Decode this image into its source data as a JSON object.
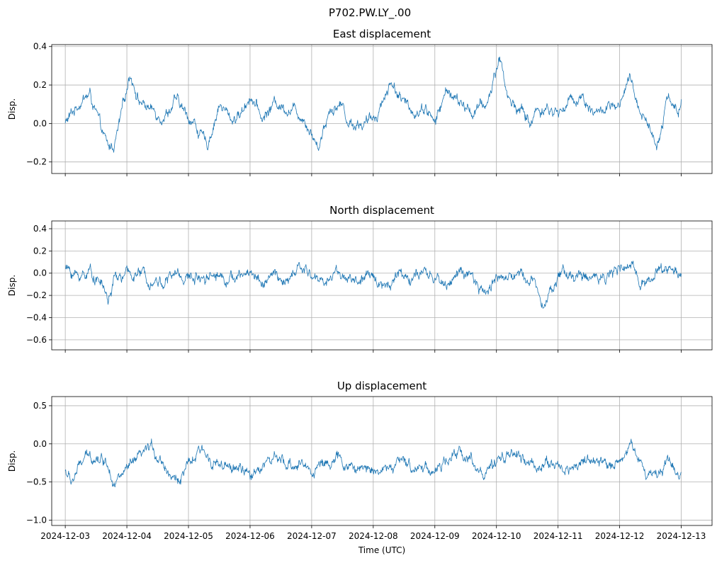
{
  "figure": {
    "title": "P702.PW.LY_.00"
  },
  "chart_data": [
    {
      "type": "line",
      "title": "East displacement",
      "xlabel": "",
      "ylabel": "Disp.",
      "ylim": [
        -0.26,
        0.41
      ],
      "yticks": [
        -0.2,
        0.0,
        0.2,
        0.4
      ],
      "ytick_labels": [
        "−0.2",
        "0.0",
        "0.2",
        "0.4"
      ],
      "xlim": [
        -0.22,
        10.5
      ],
      "x_start": "2024-12-03",
      "x_end": "2024-12-13",
      "grid": true,
      "color": "#1f77b4",
      "series": [
        {
          "x": [
            0,
            0.25,
            0.4,
            0.6,
            0.7,
            0.8,
            0.9,
            1.05,
            1.2,
            1.4,
            1.6,
            1.8,
            1.95,
            2.1,
            2.3,
            2.5,
            2.7,
            2.85,
            3.0,
            3.2,
            3.4,
            3.6,
            3.75,
            3.9,
            4.1,
            4.3,
            4.5,
            4.6,
            4.75,
            4.9,
            5.05,
            5.3,
            5.5,
            5.7,
            5.85,
            6.0,
            6.2,
            6.4,
            6.6,
            6.85,
            7.05,
            7.2,
            7.4,
            7.55,
            7.65,
            7.8,
            8.0,
            8.2,
            8.4,
            8.6,
            8.8,
            9.0,
            9.15,
            9.3,
            9.45,
            9.6,
            9.8,
            9.95,
            10.0
          ],
          "y": [
            0.0,
            0.12,
            0.15,
            -0.05,
            -0.13,
            -0.11,
            0.02,
            0.27,
            0.12,
            0.07,
            0.04,
            0.12,
            0.05,
            0.0,
            -0.12,
            0.1,
            0.02,
            0.05,
            0.15,
            0.02,
            0.11,
            0.08,
            0.07,
            0.02,
            -0.12,
            0.08,
            0.1,
            0.0,
            0.0,
            0.0,
            0.05,
            0.22,
            0.1,
            0.06,
            0.09,
            0.0,
            0.18,
            0.1,
            0.06,
            0.1,
            0.35,
            0.12,
            0.07,
            0.0,
            0.07,
            0.08,
            0.05,
            0.12,
            0.14,
            0.05,
            0.08,
            0.07,
            0.23,
            0.1,
            0.0,
            -0.1,
            0.15,
            0.05,
            0.1
          ]
        }
      ]
    },
    {
      "type": "line",
      "title": "North displacement",
      "xlabel": "",
      "ylabel": "Disp.",
      "ylim": [
        -0.69,
        0.47
      ],
      "yticks": [
        -0.6,
        -0.4,
        -0.2,
        0.0,
        0.2,
        0.4
      ],
      "ytick_labels": [
        "−0.6",
        "−0.4",
        "−0.2",
        "0.0",
        "0.2",
        "0.4"
      ],
      "xlim": [
        -0.22,
        10.5
      ],
      "x_start": "2024-12-03",
      "x_end": "2024-12-13",
      "grid": true,
      "color": "#1f77b4",
      "series": [
        {
          "x": [
            0,
            0.2,
            0.4,
            0.6,
            0.7,
            0.8,
            1.0,
            1.2,
            1.4,
            1.6,
            1.8,
            2.0,
            2.2,
            2.4,
            2.6,
            2.8,
            3.0,
            3.2,
            3.4,
            3.6,
            3.8,
            4.0,
            4.2,
            4.4,
            4.6,
            4.8,
            5.0,
            5.2,
            5.4,
            5.6,
            5.8,
            6.0,
            6.2,
            6.4,
            6.6,
            6.8,
            7.0,
            7.2,
            7.4,
            7.6,
            7.8,
            8.0,
            8.2,
            8.4,
            8.6,
            8.8,
            9.0,
            9.2,
            9.4,
            9.6,
            9.8,
            10.0
          ],
          "y": [
            0.05,
            -0.03,
            0.02,
            -0.1,
            -0.25,
            -0.05,
            -0.02,
            0.0,
            -0.05,
            -0.08,
            0.0,
            -0.05,
            -0.02,
            0.0,
            -0.03,
            -0.05,
            0.02,
            -0.08,
            -0.02,
            -0.1,
            0.05,
            -0.02,
            -0.08,
            0.02,
            -0.05,
            -0.08,
            -0.02,
            -0.12,
            0.0,
            -0.04,
            -0.02,
            -0.05,
            -0.1,
            0.02,
            -0.06,
            -0.2,
            -0.02,
            -0.05,
            0.0,
            -0.08,
            -0.25,
            -0.02,
            0.0,
            -0.05,
            -0.03,
            0.0,
            0.02,
            0.05,
            -0.08,
            0.0,
            0.05,
            0.0
          ]
        }
      ]
    },
    {
      "type": "line",
      "title": "Up displacement",
      "xlabel": "Time (UTC)",
      "ylabel": "Disp.",
      "ylim": [
        -1.07,
        0.62
      ],
      "yticks": [
        -1.0,
        -0.5,
        0.0,
        0.5
      ],
      "ytick_labels": [
        "−1.0",
        "−0.5",
        "0.0",
        "0.5"
      ],
      "xlim": [
        -0.22,
        10.5
      ],
      "x_start": "2024-12-03",
      "x_end": "2024-12-13",
      "xticks": [
        0,
        1,
        2,
        3,
        4,
        5,
        6,
        7,
        8,
        9,
        10
      ],
      "xtick_labels": [
        "2024-12-03",
        "2024-12-04",
        "2024-12-05",
        "2024-12-06",
        "2024-12-07",
        "2024-12-08",
        "2024-12-09",
        "2024-12-10",
        "2024-12-11",
        "2024-12-12",
        "2024-12-13"
      ],
      "grid": true,
      "color": "#1f77b4",
      "series": [
        {
          "x": [
            0,
            0.1,
            0.3,
            0.5,
            0.7,
            0.8,
            1.0,
            1.2,
            1.4,
            1.6,
            1.8,
            2.0,
            2.2,
            2.4,
            2.6,
            2.8,
            3.0,
            3.2,
            3.4,
            3.6,
            3.8,
            4.0,
            4.2,
            4.4,
            4.6,
            4.8,
            5.0,
            5.2,
            5.4,
            5.6,
            5.8,
            6.0,
            6.2,
            6.4,
            6.6,
            6.8,
            7.0,
            7.2,
            7.4,
            7.6,
            7.8,
            8.0,
            8.2,
            8.4,
            8.6,
            8.8,
            9.0,
            9.2,
            9.4,
            9.6,
            9.8,
            10.0
          ],
          "y": [
            -0.35,
            -0.5,
            -0.2,
            -0.15,
            -0.25,
            -0.5,
            -0.35,
            -0.2,
            -0.05,
            -0.25,
            -0.5,
            -0.3,
            -0.1,
            -0.2,
            -0.35,
            -0.3,
            -0.45,
            -0.25,
            -0.2,
            -0.3,
            -0.25,
            -0.35,
            -0.25,
            -0.2,
            -0.3,
            -0.35,
            -0.3,
            -0.35,
            -0.25,
            -0.3,
            -0.28,
            -0.35,
            -0.25,
            -0.1,
            -0.2,
            -0.4,
            -0.3,
            -0.1,
            -0.2,
            -0.3,
            -0.25,
            -0.3,
            -0.35,
            -0.2,
            -0.25,
            -0.3,
            -0.2,
            0.0,
            -0.35,
            -0.4,
            -0.2,
            -0.4
          ]
        }
      ]
    }
  ]
}
